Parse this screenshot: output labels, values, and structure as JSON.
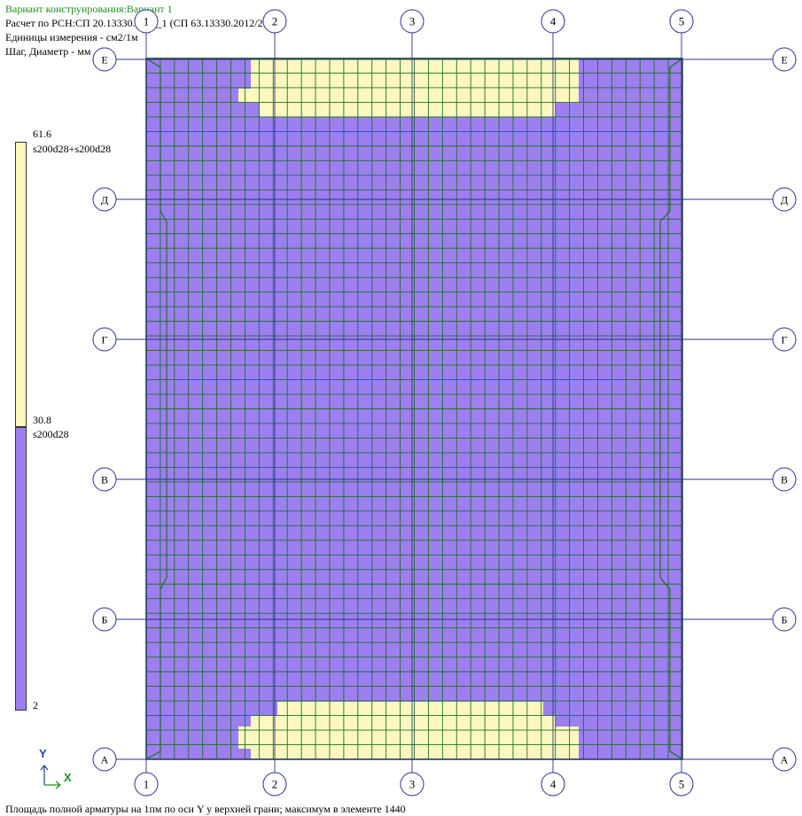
{
  "header": {
    "variant": "Вариант конструирования:Вариант 1",
    "norm": "Расчет по РСН:СП 20.13330.2016_1 (СП 63.13330.2012/2018)",
    "units": "Единицы измерения - см2/1м",
    "step": "Шаг, Диаметр - мм"
  },
  "legend": {
    "items": [
      {
        "value": "61.6",
        "label": "s200d28+s200d28",
        "color": "#fef8bf"
      },
      {
        "value": "30.8",
        "label": "s200d28",
        "color": "#9d7ff0"
      },
      {
        "value": "2",
        "label": "",
        "color": "#9d7ff0"
      }
    ]
  },
  "grid_axes": {
    "vertical": [
      "1",
      "2",
      "3",
      "4",
      "5"
    ],
    "horizontal": [
      "Е",
      "Д",
      "Г",
      "В",
      "Б",
      "А"
    ]
  },
  "mesh": {
    "columns": 38,
    "rows": 48,
    "colors": {
      "low": "#9d7ff0",
      "high": "#fef8bf",
      "lines": "#1f6f2a",
      "axis_lines": "#2c2f8f"
    }
  },
  "coord_icon": {
    "y": "Y",
    "x": "X"
  },
  "footer": "Площадь полной арматуры на 1пм по оси Y у верхней грани; максимум в элементе 1440"
}
